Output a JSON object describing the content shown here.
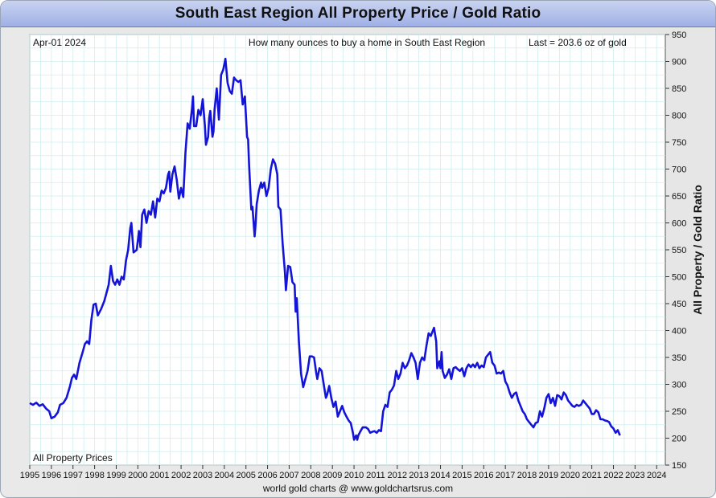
{
  "title": "South East Region All Property Price / Gold Ratio",
  "date_label": "Apr-01  2024",
  "subtitle": "How many ounces to buy a home in South East Region",
  "last_label": "Last = 203.6 oz of gold",
  "series_label": "All Property Prices",
  "footer": "world gold charts @ www.goldchartsrus.com",
  "colors": {
    "line": "#1414d8",
    "grid": "#cfeeee",
    "title_bar": "#a9b8e8"
  },
  "chart_data": {
    "type": "line",
    "title": "South East Region All Property Price / Gold Ratio",
    "ylabel": "All Property / Gold Ratio",
    "xlabel": "",
    "ylim": [
      150,
      950
    ],
    "xlim": [
      1995.0,
      2024.4
    ],
    "y_ticks": [
      150,
      200,
      250,
      300,
      350,
      400,
      450,
      500,
      550,
      600,
      650,
      700,
      750,
      800,
      850,
      900,
      950
    ],
    "x_ticks": [
      "1995",
      "1996",
      "1997",
      "1998",
      "1999",
      "2000",
      "2001",
      "2002",
      "2003",
      "2004",
      "2005",
      "2006",
      "2007",
      "2008",
      "2009",
      "2010",
      "2011",
      "2012",
      "2013",
      "2014",
      "2015",
      "2016",
      "2017",
      "2018",
      "2019",
      "2020",
      "2021",
      "2022",
      "2023",
      "2024"
    ],
    "grid": true,
    "y_axis_position": "right",
    "series": [
      {
        "name": "All Property Prices",
        "points": [
          [
            1995.0,
            265
          ],
          [
            1995.15,
            262
          ],
          [
            1995.3,
            266
          ],
          [
            1995.45,
            260
          ],
          [
            1995.6,
            263
          ],
          [
            1995.75,
            255
          ],
          [
            1995.9,
            250
          ],
          [
            1996.0,
            237
          ],
          [
            1996.15,
            240
          ],
          [
            1996.3,
            248
          ],
          [
            1996.4,
            262
          ],
          [
            1996.55,
            265
          ],
          [
            1996.7,
            275
          ],
          [
            1996.85,
            295
          ],
          [
            1996.95,
            312
          ],
          [
            1997.05,
            318
          ],
          [
            1997.15,
            310
          ],
          [
            1997.3,
            340
          ],
          [
            1997.45,
            360
          ],
          [
            1997.55,
            375
          ],
          [
            1997.65,
            380
          ],
          [
            1997.75,
            375
          ],
          [
            1997.85,
            420
          ],
          [
            1997.95,
            448
          ],
          [
            1998.05,
            450
          ],
          [
            1998.15,
            428
          ],
          [
            1998.3,
            440
          ],
          [
            1998.45,
            455
          ],
          [
            1998.55,
            470
          ],
          [
            1998.65,
            485
          ],
          [
            1998.75,
            520
          ],
          [
            1998.85,
            492
          ],
          [
            1998.95,
            485
          ],
          [
            1999.05,
            495
          ],
          [
            1999.15,
            485
          ],
          [
            1999.25,
            500
          ],
          [
            1999.35,
            495
          ],
          [
            1999.45,
            530
          ],
          [
            1999.55,
            550
          ],
          [
            1999.65,
            590
          ],
          [
            1999.7,
            600
          ],
          [
            1999.8,
            545
          ],
          [
            1999.95,
            550
          ],
          [
            2000.05,
            585
          ],
          [
            2000.12,
            555
          ],
          [
            2000.2,
            615
          ],
          [
            2000.3,
            625
          ],
          [
            2000.4,
            600
          ],
          [
            2000.5,
            622
          ],
          [
            2000.6,
            615
          ],
          [
            2000.7,
            640
          ],
          [
            2000.8,
            610
          ],
          [
            2000.9,
            645
          ],
          [
            2001.0,
            640
          ],
          [
            2001.1,
            660
          ],
          [
            2001.2,
            655
          ],
          [
            2001.3,
            665
          ],
          [
            2001.4,
            690
          ],
          [
            2001.45,
            695
          ],
          [
            2001.5,
            658
          ],
          [
            2001.6,
            690
          ],
          [
            2001.7,
            705
          ],
          [
            2001.8,
            680
          ],
          [
            2001.9,
            645
          ],
          [
            2002.0,
            665
          ],
          [
            2002.1,
            648
          ],
          [
            2002.2,
            730
          ],
          [
            2002.3,
            785
          ],
          [
            2002.4,
            775
          ],
          [
            2002.5,
            810
          ],
          [
            2002.55,
            835
          ],
          [
            2002.6,
            780
          ],
          [
            2002.7,
            780
          ],
          [
            2002.8,
            810
          ],
          [
            2002.9,
            800
          ],
          [
            2003.0,
            830
          ],
          [
            2003.1,
            780
          ],
          [
            2003.15,
            745
          ],
          [
            2003.25,
            760
          ],
          [
            2003.3,
            795
          ],
          [
            2003.35,
            808
          ],
          [
            2003.45,
            760
          ],
          [
            2003.5,
            770
          ],
          [
            2003.55,
            810
          ],
          [
            2003.65,
            850
          ],
          [
            2003.75,
            792
          ],
          [
            2003.85,
            875
          ],
          [
            2003.95,
            885
          ],
          [
            2004.05,
            905
          ],
          [
            2004.15,
            860
          ],
          [
            2004.25,
            845
          ],
          [
            2004.35,
            840
          ],
          [
            2004.45,
            870
          ],
          [
            2004.55,
            865
          ],
          [
            2004.65,
            862
          ],
          [
            2004.75,
            865
          ],
          [
            2004.85,
            820
          ],
          [
            2004.95,
            835
          ],
          [
            2005.05,
            760
          ],
          [
            2005.1,
            755
          ],
          [
            2005.15,
            705
          ],
          [
            2005.25,
            625
          ],
          [
            2005.3,
            630
          ],
          [
            2005.4,
            575
          ],
          [
            2005.45,
            600
          ],
          [
            2005.5,
            635
          ],
          [
            2005.6,
            660
          ],
          [
            2005.7,
            675
          ],
          [
            2005.75,
            665
          ],
          [
            2005.85,
            675
          ],
          [
            2005.95,
            650
          ],
          [
            2006.05,
            665
          ],
          [
            2006.15,
            700
          ],
          [
            2006.25,
            718
          ],
          [
            2006.35,
            710
          ],
          [
            2006.45,
            690
          ],
          [
            2006.5,
            630
          ],
          [
            2006.6,
            625
          ],
          [
            2006.7,
            560
          ],
          [
            2006.8,
            510
          ],
          [
            2006.85,
            475
          ],
          [
            2006.95,
            520
          ],
          [
            2007.05,
            518
          ],
          [
            2007.15,
            490
          ],
          [
            2007.25,
            485
          ],
          [
            2007.3,
            435
          ],
          [
            2007.35,
            460
          ],
          [
            2007.45,
            380
          ],
          [
            2007.55,
            320
          ],
          [
            2007.65,
            295
          ],
          [
            2007.75,
            310
          ],
          [
            2007.85,
            325
          ],
          [
            2007.95,
            352
          ],
          [
            2008.05,
            352
          ],
          [
            2008.15,
            350
          ],
          [
            2008.25,
            322
          ],
          [
            2008.3,
            310
          ],
          [
            2008.4,
            330
          ],
          [
            2008.5,
            325
          ],
          [
            2008.6,
            300
          ],
          [
            2008.7,
            275
          ],
          [
            2008.75,
            280
          ],
          [
            2008.85,
            297
          ],
          [
            2008.95,
            275
          ],
          [
            2009.05,
            258
          ],
          [
            2009.15,
            268
          ],
          [
            2009.25,
            240
          ],
          [
            2009.35,
            250
          ],
          [
            2009.45,
            260
          ],
          [
            2009.55,
            248
          ],
          [
            2009.65,
            240
          ],
          [
            2009.75,
            233
          ],
          [
            2009.85,
            228
          ],
          [
            2009.95,
            210
          ],
          [
            2010.0,
            197
          ],
          [
            2010.1,
            205
          ],
          [
            2010.15,
            197
          ],
          [
            2010.2,
            205
          ],
          [
            2010.3,
            213
          ],
          [
            2010.4,
            220
          ],
          [
            2010.55,
            220
          ],
          [
            2010.65,
            217
          ],
          [
            2010.75,
            210
          ],
          [
            2010.85,
            212
          ],
          [
            2010.95,
            213
          ],
          [
            2011.05,
            210
          ],
          [
            2011.15,
            215
          ],
          [
            2011.25,
            213
          ],
          [
            2011.35,
            250
          ],
          [
            2011.45,
            262
          ],
          [
            2011.55,
            258
          ],
          [
            2011.65,
            285
          ],
          [
            2011.75,
            290
          ],
          [
            2011.85,
            298
          ],
          [
            2011.95,
            325
          ],
          [
            2012.05,
            310
          ],
          [
            2012.15,
            320
          ],
          [
            2012.25,
            340
          ],
          [
            2012.35,
            330
          ],
          [
            2012.45,
            335
          ],
          [
            2012.55,
            345
          ],
          [
            2012.65,
            358
          ],
          [
            2012.75,
            350
          ],
          [
            2012.85,
            340
          ],
          [
            2012.95,
            310
          ],
          [
            2013.05,
            340
          ],
          [
            2013.15,
            350
          ],
          [
            2013.25,
            345
          ],
          [
            2013.35,
            372
          ],
          [
            2013.45,
            395
          ],
          [
            2013.55,
            390
          ],
          [
            2013.6,
            395
          ],
          [
            2013.7,
            405
          ],
          [
            2013.8,
            380
          ],
          [
            2013.85,
            330
          ],
          [
            2013.95,
            343
          ],
          [
            2014.0,
            330
          ],
          [
            2014.05,
            360
          ],
          [
            2014.1,
            325
          ],
          [
            2014.2,
            312
          ],
          [
            2014.3,
            318
          ],
          [
            2014.4,
            328
          ],
          [
            2014.5,
            310
          ],
          [
            2014.6,
            330
          ],
          [
            2014.7,
            332
          ],
          [
            2014.8,
            328
          ],
          [
            2014.9,
            325
          ],
          [
            2015.0,
            330
          ],
          [
            2015.1,
            315
          ],
          [
            2015.2,
            330
          ],
          [
            2015.3,
            337
          ],
          [
            2015.4,
            332
          ],
          [
            2015.5,
            337
          ],
          [
            2015.6,
            332
          ],
          [
            2015.7,
            340
          ],
          [
            2015.8,
            330
          ],
          [
            2015.9,
            335
          ],
          [
            2016.0,
            332
          ],
          [
            2016.1,
            350
          ],
          [
            2016.2,
            355
          ],
          [
            2016.3,
            360
          ],
          [
            2016.4,
            340
          ],
          [
            2016.5,
            335
          ],
          [
            2016.6,
            320
          ],
          [
            2016.7,
            322
          ],
          [
            2016.8,
            320
          ],
          [
            2016.9,
            325
          ],
          [
            2017.0,
            305
          ],
          [
            2017.1,
            298
          ],
          [
            2017.2,
            285
          ],
          [
            2017.3,
            275
          ],
          [
            2017.4,
            282
          ],
          [
            2017.5,
            285
          ],
          [
            2017.6,
            270
          ],
          [
            2017.7,
            260
          ],
          [
            2017.8,
            250
          ],
          [
            2017.9,
            245
          ],
          [
            2018.0,
            235
          ],
          [
            2018.1,
            230
          ],
          [
            2018.2,
            225
          ],
          [
            2018.3,
            220
          ],
          [
            2018.4,
            228
          ],
          [
            2018.5,
            230
          ],
          [
            2018.6,
            250
          ],
          [
            2018.7,
            240
          ],
          [
            2018.8,
            255
          ],
          [
            2018.9,
            275
          ],
          [
            2019.0,
            282
          ],
          [
            2019.1,
            265
          ],
          [
            2019.2,
            275
          ],
          [
            2019.3,
            260
          ],
          [
            2019.4,
            280
          ],
          [
            2019.5,
            278
          ],
          [
            2019.6,
            272
          ],
          [
            2019.7,
            285
          ],
          [
            2019.8,
            280
          ],
          [
            2019.9,
            270
          ],
          [
            2020.0,
            265
          ],
          [
            2020.1,
            260
          ],
          [
            2020.2,
            258
          ],
          [
            2020.3,
            262
          ],
          [
            2020.4,
            260
          ],
          [
            2020.5,
            262
          ],
          [
            2020.6,
            270
          ],
          [
            2020.7,
            265
          ],
          [
            2020.8,
            260
          ],
          [
            2020.9,
            255
          ],
          [
            2021.0,
            245
          ],
          [
            2021.1,
            245
          ],
          [
            2021.2,
            252
          ],
          [
            2021.3,
            248
          ],
          [
            2021.4,
            235
          ],
          [
            2021.5,
            235
          ],
          [
            2021.6,
            233
          ],
          [
            2021.7,
            232
          ],
          [
            2021.8,
            230
          ],
          [
            2021.9,
            222
          ],
          [
            2022.0,
            218
          ],
          [
            2022.1,
            210
          ],
          [
            2022.2,
            215
          ],
          [
            2022.3,
            205
          ]
        ]
      }
    ]
  }
}
